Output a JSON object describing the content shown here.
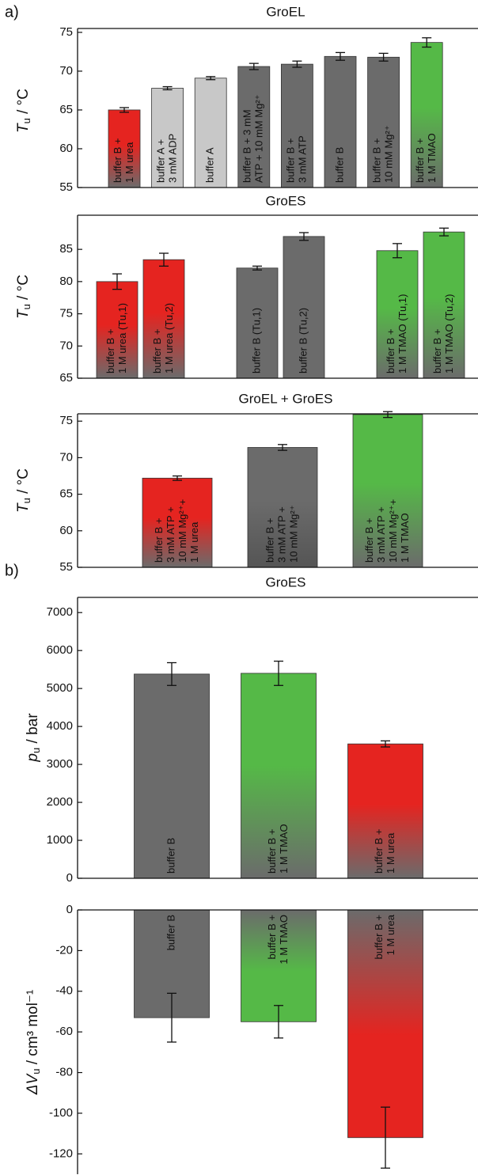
{
  "chart_data": [
    {
      "type": "bar",
      "panel_label": "a)",
      "title": "GroEL",
      "ylabel": {
        "symbol": "T",
        "subscript": "u",
        "unit": " / °C"
      },
      "categories": [
        [
          "buffer B +",
          "1 M urea"
        ],
        [
          "buffer A +",
          "3 mM ADP"
        ],
        [
          "buffer A"
        ],
        [
          "buffer B + 3 mM",
          "ATP + 10 mM Mg²⁺"
        ],
        [
          "buffer B +",
          "3 mM ATP"
        ],
        [
          "buffer B"
        ],
        [
          "buffer B +",
          "10 mM Mg²⁺"
        ],
        [
          "buffer B +",
          "1 M TMAO"
        ]
      ],
      "values": [
        65.0,
        67.8,
        69.1,
        70.6,
        70.9,
        71.9,
        71.8,
        73.7
      ],
      "errors": [
        0.3,
        0.2,
        0.2,
        0.4,
        0.4,
        0.5,
        0.5,
        0.6
      ],
      "colors": [
        "#e52420",
        "#c8c8c8",
        "#c8c8c8",
        "#6b6b6b",
        "#6b6b6b",
        "#6b6b6b",
        "#6b6b6b",
        "#55b947"
      ],
      "fade_colors": [
        "#6b6b6b",
        "#c8c8c8",
        "#c8c8c8",
        "#6b6b6b",
        "#6b6b6b",
        "#6b6b6b",
        "#6b6b6b",
        "#6b6b6b"
      ],
      "ylim": [
        55,
        75.5
      ],
      "yticks": [
        55,
        60,
        65,
        70,
        75
      ]
    },
    {
      "type": "bar",
      "title": "GroES",
      "ylabel": {
        "symbol": "T",
        "subscript": "u",
        "unit": " / °C"
      },
      "categories": [
        [
          "buffer B +",
          "1 M urea (Tu,1)"
        ],
        [
          "buffer B +",
          "1 M urea (Tu,2)"
        ],
        null,
        [
          "buffer B (Tu,1)"
        ],
        [
          "buffer B (Tu,2)"
        ],
        null,
        [
          "buffer B +",
          "1 M TMAO (Tu,1)"
        ],
        [
          "buffer B +",
          "1 M TMAO (Tu,2)"
        ]
      ],
      "values": [
        80.0,
        83.4,
        null,
        82.1,
        87.0,
        null,
        84.8,
        87.7
      ],
      "errors": [
        1.2,
        1.0,
        null,
        0.3,
        0.6,
        null,
        1.1,
        0.6
      ],
      "colors": [
        "#e52420",
        "#e52420",
        null,
        "#6b6b6b",
        "#6b6b6b",
        null,
        "#55b947",
        "#55b947"
      ],
      "fade_colors": [
        "#6b6b6b",
        "#6b6b6b",
        null,
        "#6b6b6b",
        "#6b6b6b",
        null,
        "#6b6b6b",
        "#6b6b6b"
      ],
      "ylim": [
        65,
        90.3
      ],
      "yticks": [
        65,
        70,
        75,
        80,
        85
      ]
    },
    {
      "type": "bar",
      "title": "GroEL + GroES",
      "ylabel": {
        "symbol": "T",
        "subscript": "u",
        "unit": " / °C"
      },
      "categories": [
        [
          "buffer B +",
          "3 mM ATP +",
          "10 mM Mg²⁺+",
          "1 M urea"
        ],
        [
          "buffer B +",
          "3 mM ATP +",
          "10 mM Mg²⁺"
        ],
        [
          "buffer B +",
          "3 mM ATP +",
          "10 mM Mg²⁺+",
          "1 M TMAO"
        ]
      ],
      "values": [
        67.2,
        71.4,
        75.9
      ],
      "errors": [
        0.3,
        0.4,
        0.4
      ],
      "colors": [
        "#e52420",
        "#6b6b6b",
        "#55b947"
      ],
      "fade_colors": [
        "#6b6b6b",
        "#555555",
        "#6b6b6b"
      ],
      "ylim": [
        55,
        76
      ],
      "yticks": [
        55,
        60,
        65,
        70,
        75
      ]
    },
    {
      "type": "bar",
      "panel_label": "b)",
      "title": "GroES",
      "ylabel": {
        "symbol": "p",
        "subscript": "u",
        "unit": " / bar"
      },
      "categories": [
        [
          "buffer B"
        ],
        [
          "buffer B +",
          "1 M TMAO"
        ],
        [
          "buffer B +",
          "1 M urea"
        ]
      ],
      "values": [
        5380,
        5400,
        3540
      ],
      "errors": [
        300,
        320,
        80
      ],
      "colors": [
        "#6b6b6b",
        "#55b947",
        "#e52420"
      ],
      "fade_colors": [
        "#6b6b6b",
        "#6b6b6b",
        "#6b6b6b"
      ],
      "ylim": [
        0,
        7400
      ],
      "yticks": [
        0,
        1000,
        2000,
        3000,
        4000,
        5000,
        6000,
        7000
      ]
    },
    {
      "type": "bar",
      "ylabel": {
        "symbol": "ΔV",
        "subscript": "u",
        "unit": " / cm³ mol⁻¹"
      },
      "categories": [
        [
          "buffer B"
        ],
        [
          "buffer B +",
          "1 M TMAO"
        ],
        [
          "buffer B +",
          "1 M urea"
        ]
      ],
      "values": [
        -53,
        -55,
        -112
      ],
      "errors": [
        12,
        8,
        15
      ],
      "colors": [
        "#6b6b6b",
        "#55b947",
        "#e52420"
      ],
      "fade_colors": [
        "#6b6b6b",
        "#6b6b6b",
        "#6b6b6b"
      ],
      "ylim": [
        -130,
        0
      ],
      "yticks": [
        -120,
        -100,
        -80,
        -60,
        -40,
        -20,
        0
      ]
    }
  ]
}
